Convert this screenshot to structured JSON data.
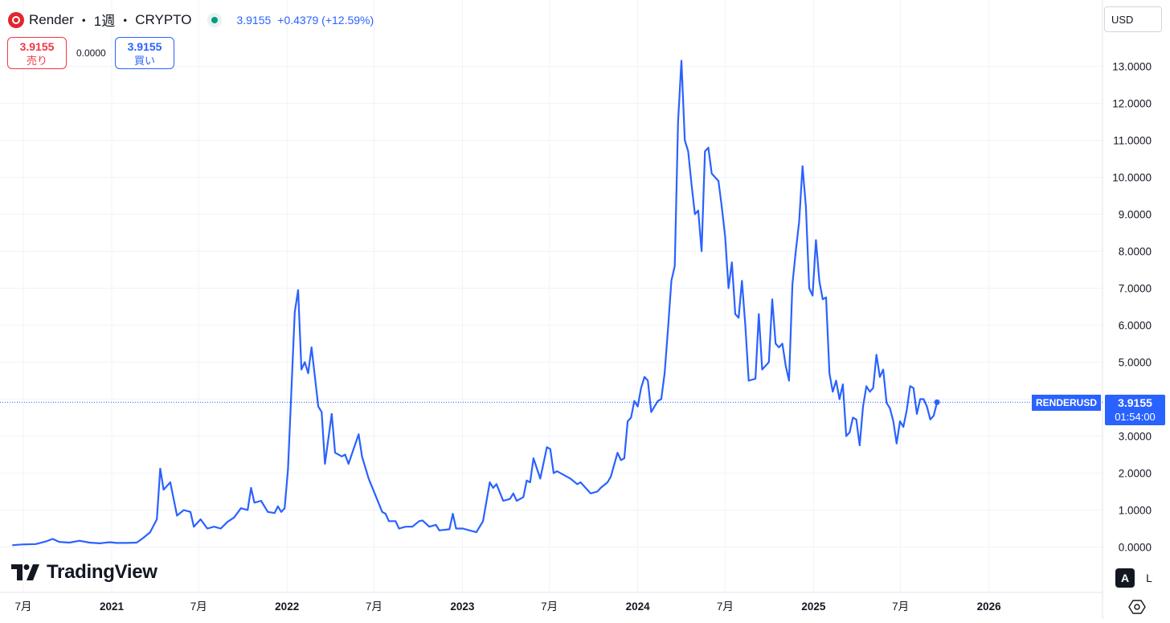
{
  "header": {
    "symbol": "Render",
    "interval": "1週",
    "exchange": "CRYPTO",
    "separator": "・",
    "last_price": "3.9155",
    "change": "+0.4379 (+12.59%)"
  },
  "trade": {
    "sell_price": "3.9155",
    "sell_label": "売り",
    "spread": "0.0000",
    "buy_price": "3.9155",
    "buy_label": "買い"
  },
  "currency_selector": "USD",
  "price_tag": {
    "symbol": "RENDERUSD",
    "price": "3.9155",
    "countdown": "01:54:00"
  },
  "logo_text": "TradingView",
  "scale_buttons": {
    "auto": "A",
    "log": "L"
  },
  "colors": {
    "line": "#2962ff",
    "sell": "#f23645",
    "buy": "#2962ff",
    "live": "#089981",
    "grid": "#f0f3fa"
  },
  "icons": {
    "logo": "render-logo-icon",
    "live": "live-status-icon",
    "settings": "settings-icon",
    "tv": "tradingview-logo-icon"
  },
  "chart_data": {
    "type": "line",
    "ylim": [
      -1,
      13.9
    ],
    "y_ticks": [
      "13.0000",
      "12.0000",
      "11.0000",
      "10.0000",
      "9.0000",
      "8.0000",
      "7.0000",
      "6.0000",
      "5.0000",
      "4.0000",
      "3.0000",
      "2.0000",
      "1.0000",
      "0.0000"
    ],
    "x_ticks": [
      {
        "label": "7月",
        "date": "2020-07-01"
      },
      {
        "label": "2021",
        "date": "2021-01-01"
      },
      {
        "label": "7月",
        "date": "2021-07-01"
      },
      {
        "label": "2022",
        "date": "2022-01-01"
      },
      {
        "label": "7月",
        "date": "2022-07-01"
      },
      {
        "label": "2023",
        "date": "2023-01-01"
      },
      {
        "label": "7月",
        "date": "2023-07-01"
      },
      {
        "label": "2024",
        "date": "2024-01-01"
      },
      {
        "label": "7月",
        "date": "2024-07-01"
      },
      {
        "label": "2025",
        "date": "2025-01-01"
      },
      {
        "label": "7月",
        "date": "2025-07-01"
      },
      {
        "label": "2026",
        "date": "2026-01-01"
      }
    ],
    "series": [
      {
        "points": [
          [
            "2020-06-08",
            0.05
          ],
          [
            "2020-06-29",
            0.07
          ],
          [
            "2020-07-27",
            0.08
          ],
          [
            "2020-08-17",
            0.15
          ],
          [
            "2020-08-31",
            0.22
          ],
          [
            "2020-09-14",
            0.14
          ],
          [
            "2020-10-05",
            0.12
          ],
          [
            "2020-10-26",
            0.17
          ],
          [
            "2020-11-16",
            0.12
          ],
          [
            "2020-12-07",
            0.1
          ],
          [
            "2020-12-28",
            0.13
          ],
          [
            "2021-01-11",
            0.11
          ],
          [
            "2021-02-01",
            0.11
          ],
          [
            "2021-02-22",
            0.12
          ],
          [
            "2021-03-08",
            0.25
          ],
          [
            "2021-03-22",
            0.4
          ],
          [
            "2021-04-05",
            0.75
          ],
          [
            "2021-04-12",
            2.12
          ],
          [
            "2021-04-19",
            1.55
          ],
          [
            "2021-05-03",
            1.75
          ],
          [
            "2021-05-17",
            0.85
          ],
          [
            "2021-05-31",
            1.0
          ],
          [
            "2021-06-14",
            0.95
          ],
          [
            "2021-06-21",
            0.55
          ],
          [
            "2021-07-05",
            0.75
          ],
          [
            "2021-07-19",
            0.5
          ],
          [
            "2021-08-02",
            0.55
          ],
          [
            "2021-08-16",
            0.5
          ],
          [
            "2021-08-30",
            0.68
          ],
          [
            "2021-09-13",
            0.8
          ],
          [
            "2021-09-27",
            1.05
          ],
          [
            "2021-10-11",
            1.0
          ],
          [
            "2021-10-18",
            1.6
          ],
          [
            "2021-10-25",
            1.2
          ],
          [
            "2021-11-08",
            1.25
          ],
          [
            "2021-11-22",
            0.95
          ],
          [
            "2021-12-06",
            0.92
          ],
          [
            "2021-12-13",
            1.1
          ],
          [
            "2021-12-20",
            0.95
          ],
          [
            "2021-12-27",
            1.05
          ],
          [
            "2022-01-03",
            2.1
          ],
          [
            "2022-01-17",
            6.35
          ],
          [
            "2022-01-24",
            6.95
          ],
          [
            "2022-01-31",
            4.8
          ],
          [
            "2022-02-07",
            5.0
          ],
          [
            "2022-02-14",
            4.7
          ],
          [
            "2022-02-21",
            5.4
          ],
          [
            "2022-02-28",
            4.6
          ],
          [
            "2022-03-07",
            3.8
          ],
          [
            "2022-03-14",
            3.65
          ],
          [
            "2022-03-21",
            2.25
          ],
          [
            "2022-04-04",
            3.6
          ],
          [
            "2022-04-11",
            2.55
          ],
          [
            "2022-04-25",
            2.45
          ],
          [
            "2022-05-02",
            2.5
          ],
          [
            "2022-05-09",
            2.25
          ],
          [
            "2022-05-30",
            3.05
          ],
          [
            "2022-06-06",
            2.45
          ],
          [
            "2022-06-20",
            1.85
          ],
          [
            "2022-07-04",
            1.4
          ],
          [
            "2022-07-18",
            0.95
          ],
          [
            "2022-07-25",
            0.9
          ],
          [
            "2022-08-01",
            0.7
          ],
          [
            "2022-08-15",
            0.7
          ],
          [
            "2022-08-22",
            0.5
          ],
          [
            "2022-09-05",
            0.55
          ],
          [
            "2022-09-19",
            0.55
          ],
          [
            "2022-10-03",
            0.7
          ],
          [
            "2022-10-10",
            0.72
          ],
          [
            "2022-10-24",
            0.55
          ],
          [
            "2022-11-07",
            0.6
          ],
          [
            "2022-11-14",
            0.45
          ],
          [
            "2022-12-05",
            0.48
          ],
          [
            "2022-12-12",
            0.9
          ],
          [
            "2022-12-19",
            0.5
          ],
          [
            "2023-01-02",
            0.5
          ],
          [
            "2023-01-16",
            0.45
          ],
          [
            "2023-01-30",
            0.4
          ],
          [
            "2023-02-13",
            0.7
          ],
          [
            "2023-02-27",
            1.75
          ],
          [
            "2023-03-06",
            1.6
          ],
          [
            "2023-03-13",
            1.7
          ],
          [
            "2023-03-27",
            1.25
          ],
          [
            "2023-04-10",
            1.3
          ],
          [
            "2023-04-17",
            1.45
          ],
          [
            "2023-04-24",
            1.25
          ],
          [
            "2023-05-08",
            1.35
          ],
          [
            "2023-05-15",
            1.8
          ],
          [
            "2023-05-22",
            1.75
          ],
          [
            "2023-05-29",
            2.4
          ],
          [
            "2023-06-12",
            1.85
          ],
          [
            "2023-06-26",
            2.7
          ],
          [
            "2023-07-03",
            2.65
          ],
          [
            "2023-07-10",
            2.0
          ],
          [
            "2023-07-17",
            2.05
          ],
          [
            "2023-07-31",
            1.95
          ],
          [
            "2023-08-14",
            1.85
          ],
          [
            "2023-08-28",
            1.7
          ],
          [
            "2023-09-04",
            1.75
          ],
          [
            "2023-09-11",
            1.65
          ],
          [
            "2023-09-25",
            1.45
          ],
          [
            "2023-10-09",
            1.5
          ],
          [
            "2023-10-16",
            1.6
          ],
          [
            "2023-10-30",
            1.75
          ],
          [
            "2023-11-06",
            1.9
          ],
          [
            "2023-11-20",
            2.55
          ],
          [
            "2023-11-27",
            2.35
          ],
          [
            "2023-12-04",
            2.4
          ],
          [
            "2023-12-11",
            3.4
          ],
          [
            "2023-12-18",
            3.5
          ],
          [
            "2023-12-25",
            3.95
          ],
          [
            "2024-01-01",
            3.8
          ],
          [
            "2024-01-08",
            4.3
          ],
          [
            "2024-01-15",
            4.6
          ],
          [
            "2024-01-22",
            4.5
          ],
          [
            "2024-01-29",
            3.65
          ],
          [
            "2024-02-05",
            3.8
          ],
          [
            "2024-02-12",
            3.95
          ],
          [
            "2024-02-19",
            4.0
          ],
          [
            "2024-02-26",
            4.7
          ],
          [
            "2024-03-04",
            5.9
          ],
          [
            "2024-03-11",
            7.2
          ],
          [
            "2024-03-18",
            7.6
          ],
          [
            "2024-03-25",
            11.5
          ],
          [
            "2024-04-01",
            13.15
          ],
          [
            "2024-04-08",
            11.0
          ],
          [
            "2024-04-15",
            10.7
          ],
          [
            "2024-04-22",
            9.8
          ],
          [
            "2024-04-29",
            9.0
          ],
          [
            "2024-05-06",
            9.1
          ],
          [
            "2024-05-13",
            8.0
          ],
          [
            "2024-05-20",
            10.7
          ],
          [
            "2024-05-27",
            10.8
          ],
          [
            "2024-06-03",
            10.1
          ],
          [
            "2024-06-17",
            9.9
          ],
          [
            "2024-06-24",
            9.2
          ],
          [
            "2024-07-01",
            8.4
          ],
          [
            "2024-07-08",
            7.0
          ],
          [
            "2024-07-15",
            7.7
          ],
          [
            "2024-07-22",
            6.3
          ],
          [
            "2024-07-29",
            6.2
          ],
          [
            "2024-08-05",
            7.2
          ],
          [
            "2024-08-12",
            6.0
          ],
          [
            "2024-08-19",
            4.5
          ],
          [
            "2024-09-02",
            4.55
          ],
          [
            "2024-09-09",
            6.3
          ],
          [
            "2024-09-16",
            4.8
          ],
          [
            "2024-09-30",
            5.0
          ],
          [
            "2024-10-07",
            6.7
          ],
          [
            "2024-10-14",
            5.5
          ],
          [
            "2024-10-21",
            5.4
          ],
          [
            "2024-10-28",
            5.5
          ],
          [
            "2024-11-04",
            4.9
          ],
          [
            "2024-11-11",
            4.5
          ],
          [
            "2024-11-18",
            7.1
          ],
          [
            "2024-11-25",
            8.0
          ],
          [
            "2024-12-02",
            8.8
          ],
          [
            "2024-12-09",
            10.3
          ],
          [
            "2024-12-16",
            9.2
          ],
          [
            "2024-12-23",
            7.0
          ],
          [
            "2024-12-30",
            6.8
          ],
          [
            "2025-01-06",
            8.3
          ],
          [
            "2025-01-13",
            7.2
          ],
          [
            "2025-01-20",
            6.7
          ],
          [
            "2025-01-27",
            6.75
          ],
          [
            "2025-02-03",
            4.7
          ],
          [
            "2025-02-10",
            4.2
          ],
          [
            "2025-02-17",
            4.5
          ],
          [
            "2025-02-24",
            4.0
          ],
          [
            "2025-03-03",
            4.4
          ],
          [
            "2025-03-10",
            3.0
          ],
          [
            "2025-03-17",
            3.1
          ],
          [
            "2025-03-24",
            3.5
          ],
          [
            "2025-03-31",
            3.45
          ],
          [
            "2025-04-07",
            2.75
          ],
          [
            "2025-04-14",
            3.8
          ],
          [
            "2025-04-21",
            4.35
          ],
          [
            "2025-04-28",
            4.2
          ],
          [
            "2025-05-05",
            4.3
          ],
          [
            "2025-05-12",
            5.2
          ],
          [
            "2025-05-19",
            4.6
          ],
          [
            "2025-05-26",
            4.8
          ],
          [
            "2025-06-02",
            3.9
          ],
          [
            "2025-06-09",
            3.75
          ],
          [
            "2025-06-16",
            3.4
          ],
          [
            "2025-06-23",
            2.8
          ],
          [
            "2025-06-30",
            3.4
          ],
          [
            "2025-07-07",
            3.25
          ],
          [
            "2025-07-14",
            3.7
          ],
          [
            "2025-07-21",
            4.35
          ],
          [
            "2025-07-28",
            4.3
          ],
          [
            "2025-08-04",
            3.6
          ],
          [
            "2025-08-11",
            4.0
          ],
          [
            "2025-08-18",
            4.0
          ],
          [
            "2025-08-25",
            3.8
          ],
          [
            "2025-09-01",
            3.45
          ],
          [
            "2025-09-08",
            3.55
          ],
          [
            "2025-09-15",
            3.9155
          ]
        ]
      }
    ],
    "last_value": 3.9155,
    "grid": true
  }
}
